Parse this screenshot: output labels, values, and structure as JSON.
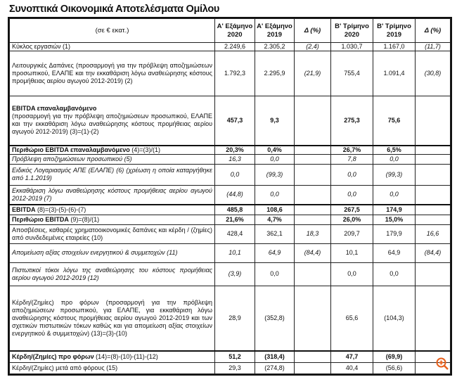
{
  "title": "Συνοπτικά Οικονομικά Αποτελέσματα Ομίλου",
  "header": {
    "unit": "(σε € εκατ.)",
    "cols": [
      [
        "Α' Εξάμηνο",
        "2020"
      ],
      [
        "Α' Εξάμηνο",
        "2019"
      ],
      [
        "Δ (%)",
        ""
      ],
      [
        "Β' Τρίμηνο",
        "2020"
      ],
      [
        "Β' Τρίμηνο",
        "2019"
      ],
      [
        "Δ (%)",
        ""
      ]
    ]
  },
  "rows": [
    {
      "bold_label": "",
      "label": "Κύκλος εργασιών (1)",
      "values": [
        "2.249,6",
        "2.305,2",
        "(2,4)",
        "1.030,7",
        "1.167,0",
        "(11,7)"
      ],
      "style": ""
    },
    {
      "bold_label": "",
      "label": "Λειτουργικές Δαπάνες (προσαρμογή για την πρόβλεψη αποζημιώσεων προσωπικού, ΕΛΑΠΕ και την εκκαθάριση λόγω αναθεώρησης κόστους προμήθειας αερίου αγωγού 2012-2019) (2)",
      "values": [
        "1.792,3",
        "2.295,9",
        "(21,9)",
        "755,4",
        "1.091,4",
        "(30,8)"
      ],
      "style": ""
    },
    {
      "bold_label": "EBITDA επαναλαμβανόμενο",
      "label": "(προσαρμογή για την πρόβλεψη αποζημιώσεων προσωπικού, ΕΛΑΠΕ και την εκκαθάριση λόγω αναθεώρησης κόστους προμήθειας αερίου αγωγού 2012-2019) (3)=(1)-(2)",
      "values": [
        "457,3",
        "9,3",
        "",
        "275,3",
        "75,6",
        ""
      ],
      "style": "boldnum thick"
    },
    {
      "bold_label": "Περιθώριο EBITDA επαναλαμβανόμενο",
      "label": "(4)=(3)/(1)",
      "values": [
        "20,3%",
        "0,4%",
        "",
        "26,7%",
        "6,5%",
        ""
      ],
      "style": "boldnum"
    },
    {
      "bold_label": "",
      "label": "Πρόβλεψη αποζημιώσεων προσωπικού (5)",
      "values": [
        "16,3",
        "0,0",
        "",
        "7,8",
        "0,0",
        ""
      ],
      "style": "ital"
    },
    {
      "bold_label": "",
      "label": "Ειδικός Λογαριασμός ΑΠΕ (ΕΛΑΠΕ) (6) (χρέωση η οποία καταργήθηκε από 1.1.2019)",
      "values": [
        "0,0",
        "(99,3)",
        "",
        "0,0",
        "(99,3)",
        ""
      ],
      "style": "ital"
    },
    {
      "bold_label": "",
      "label": "Εκκαθάριση λόγω αναθεώρησης κόστους προμήθειας αερίου αγωγού 2012-2019 (7)",
      "values": [
        "(44,8)",
        "0,0",
        "",
        "0,0",
        "0,0",
        ""
      ],
      "style": "ital thick"
    },
    {
      "bold_label": "EBITDA",
      "label": "(8)=(3)-(5)-(6)-(7)",
      "values": [
        "485,8",
        "108,6",
        "",
        "267,5",
        "174,9",
        ""
      ],
      "style": "boldnum"
    },
    {
      "bold_label": "Περιθώριο EBITDA",
      "label": "(9)=(8)/(1)",
      "values": [
        "21,6%",
        "4,7%",
        "",
        "26,0%",
        "15,0%",
        ""
      ],
      "style": "boldnum"
    },
    {
      "bold_label": "",
      "label": "Αποσβέσεις, καθαρές χρηματοοικονομικές δαπάνες και κέρδη / (ζημίες) από συνδεδεμένες εταιρείες (10)",
      "values": [
        "428,4",
        "362,1",
        "18,3",
        "209,7",
        "179,9",
        "16,6"
      ],
      "style": "italdelta"
    },
    {
      "bold_label": "",
      "label": "Απομείωση αξίας στοιχείων ενεργητικού & συμμετοχών (11)",
      "values": [
        "10,1",
        "64,9",
        "(84,4)",
        "10,1",
        "64,9",
        "(84,4)"
      ],
      "style": "ital"
    },
    {
      "bold_label": "",
      "label": "Πιστωτικοί τόκοι λόγω της αναθεώρησης του κόστους προμήθειας αερίου αγωγού 2012-2019 (12)",
      "values": [
        "(3,9)",
        "0,0",
        "",
        "0,0",
        "0,0",
        ""
      ],
      "style": "ital"
    },
    {
      "bold_label": "",
      "label": "Κέρδη/(Ζημίες) προ φόρων (προσαρμογή για την πρόβλεψη αποζημιώσεων προσωπικού, για ΕΛΑΠΕ, για εκκαθάριση λόγω αναθεώρησης κόστους προμήθειας αερίου αγωγού 2012-2019 και των σχετικών πιστωτικών τόκων καθώς και για απομείωση αξίας στοιχείων ενεργητικού & συμμετοχών) (13)=(3)-(10)",
      "values": [
        "28,9",
        "(352,8)",
        "",
        "65,6",
        "(104,3)",
        ""
      ],
      "style": "thick"
    },
    {
      "bold_label": "Κέρδη/(Ζημίες) προ φόρων",
      "label": "(14)=(8)-(10)-(11)-(12)",
      "values": [
        "51,2",
        "(318,4)",
        "",
        "47,7",
        "(69,9)",
        ""
      ],
      "style": "boldnum"
    },
    {
      "bold_label": "",
      "label": "Κέρδη/(Ζημίες) μετά από φόρους (15)",
      "values": [
        "29,3",
        "(274,8)",
        "",
        "40,4",
        "(56,6)",
        ""
      ],
      "style": ""
    }
  ],
  "accent": "#e8601c"
}
